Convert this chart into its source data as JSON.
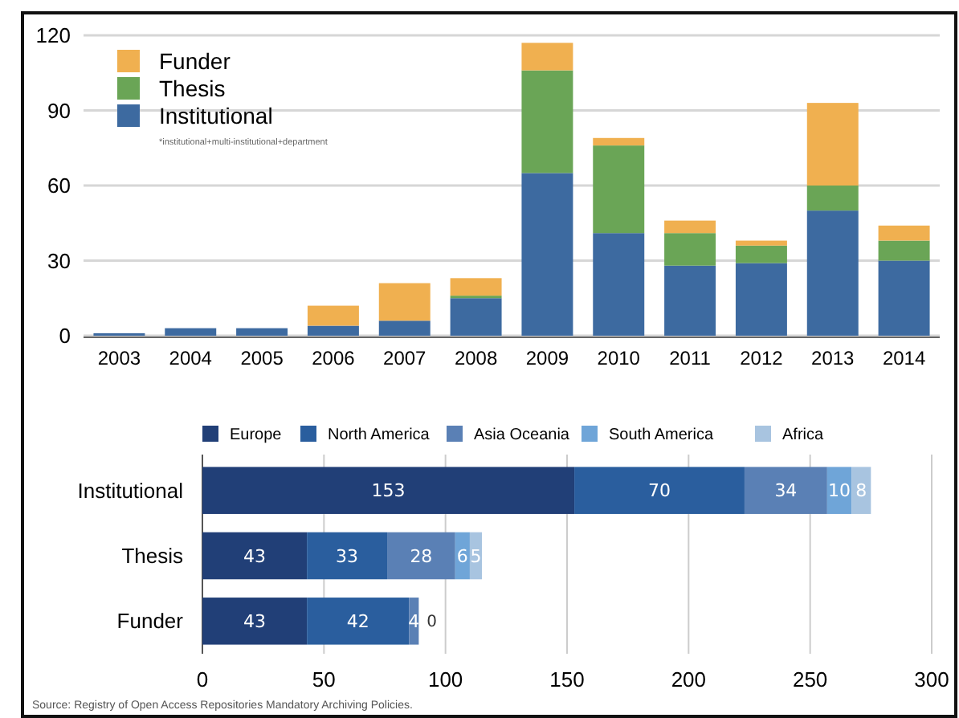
{
  "chart_data": [
    {
      "type": "bar",
      "stacked": true,
      "categories": [
        "2003",
        "2004",
        "2005",
        "2006",
        "2007",
        "2008",
        "2009",
        "2010",
        "2011",
        "2012",
        "2013",
        "2014"
      ],
      "series": [
        {
          "name": "Institutional",
          "color": "#3d6aa0",
          "values": [
            1,
            3,
            3,
            4,
            6,
            15,
            65,
            41,
            28,
            29,
            50,
            30
          ]
        },
        {
          "name": "Thesis",
          "color": "#6aa556",
          "values": [
            0,
            0,
            0,
            0,
            0,
            1,
            41,
            35,
            13,
            7,
            10,
            8
          ]
        },
        {
          "name": "Funder",
          "color": "#f0b050",
          "values": [
            0,
            0,
            0,
            8,
            15,
            7,
            11,
            3,
            5,
            2,
            33,
            6
          ]
        }
      ],
      "ylim": [
        0,
        120
      ],
      "yticks": [
        0,
        30,
        60,
        90,
        120
      ],
      "grid": "y",
      "legend": "top left",
      "annotations": [
        "*institutional+multi-institutional+department"
      ]
    },
    {
      "type": "bar",
      "stacked": true,
      "orientation": "horizontal",
      "categories": [
        "Institutional",
        "Thesis",
        "Funder"
      ],
      "series": [
        {
          "name": "Europe",
          "color": "#213f77",
          "values": [
            153,
            43,
            43
          ],
          "value_labels": [
            "153",
            "43",
            "43"
          ]
        },
        {
          "name": "North America",
          "color": "#2a5e9e",
          "values": [
            70,
            33,
            42
          ],
          "value_labels": [
            "70",
            "33",
            "42"
          ]
        },
        {
          "name": "Asia Oceania",
          "color": "#5a80b5",
          "values": [
            34,
            28,
            4
          ],
          "value_labels": [
            "34",
            "28",
            "4"
          ]
        },
        {
          "name": "South America",
          "color": "#6fa5d8",
          "values": [
            10,
            6,
            0
          ],
          "value_labels": [
            "10",
            "6",
            "0"
          ]
        },
        {
          "name": "Africa",
          "color": "#a8c4e0",
          "values": [
            8,
            5,
            null
          ],
          "value_labels": [
            "8",
            "5",
            null
          ]
        }
      ],
      "xlim": [
        0,
        300
      ],
      "xticks": [
        0,
        50,
        100,
        150,
        200,
        250,
        300
      ],
      "grid": "x",
      "legend": "top",
      "annotations": [
        "Source:  Registry of Open Access Repositories Mandatory Archiving Policies."
      ]
    }
  ]
}
